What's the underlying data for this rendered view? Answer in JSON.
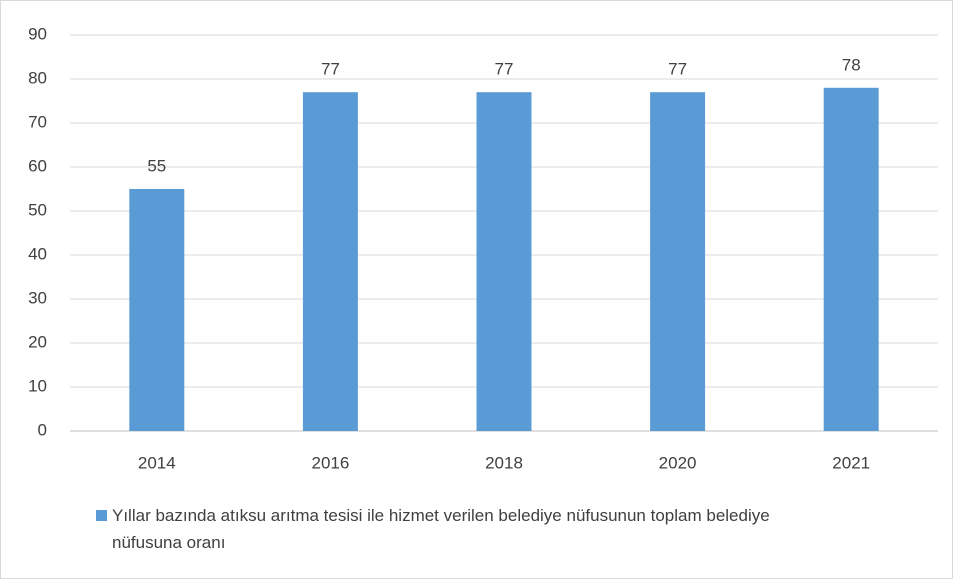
{
  "chart_data": {
    "type": "bar",
    "categories": [
      "2014",
      "2016",
      "2018",
      "2020",
      "2021"
    ],
    "series": [
      {
        "name": "Yıllar bazında atıksu arıtma tesisi ile hizmet verilen belediye nüfusunun toplam belediye nüfusuna oranı",
        "color": "#5b9bd5",
        "values": [
          55,
          77,
          77,
          77,
          78
        ]
      }
    ],
    "ylim": [
      0,
      90
    ],
    "yticks": [
      0,
      10,
      20,
      30,
      40,
      50,
      60,
      70,
      80,
      90
    ],
    "grid": true,
    "legend": "bottom"
  }
}
